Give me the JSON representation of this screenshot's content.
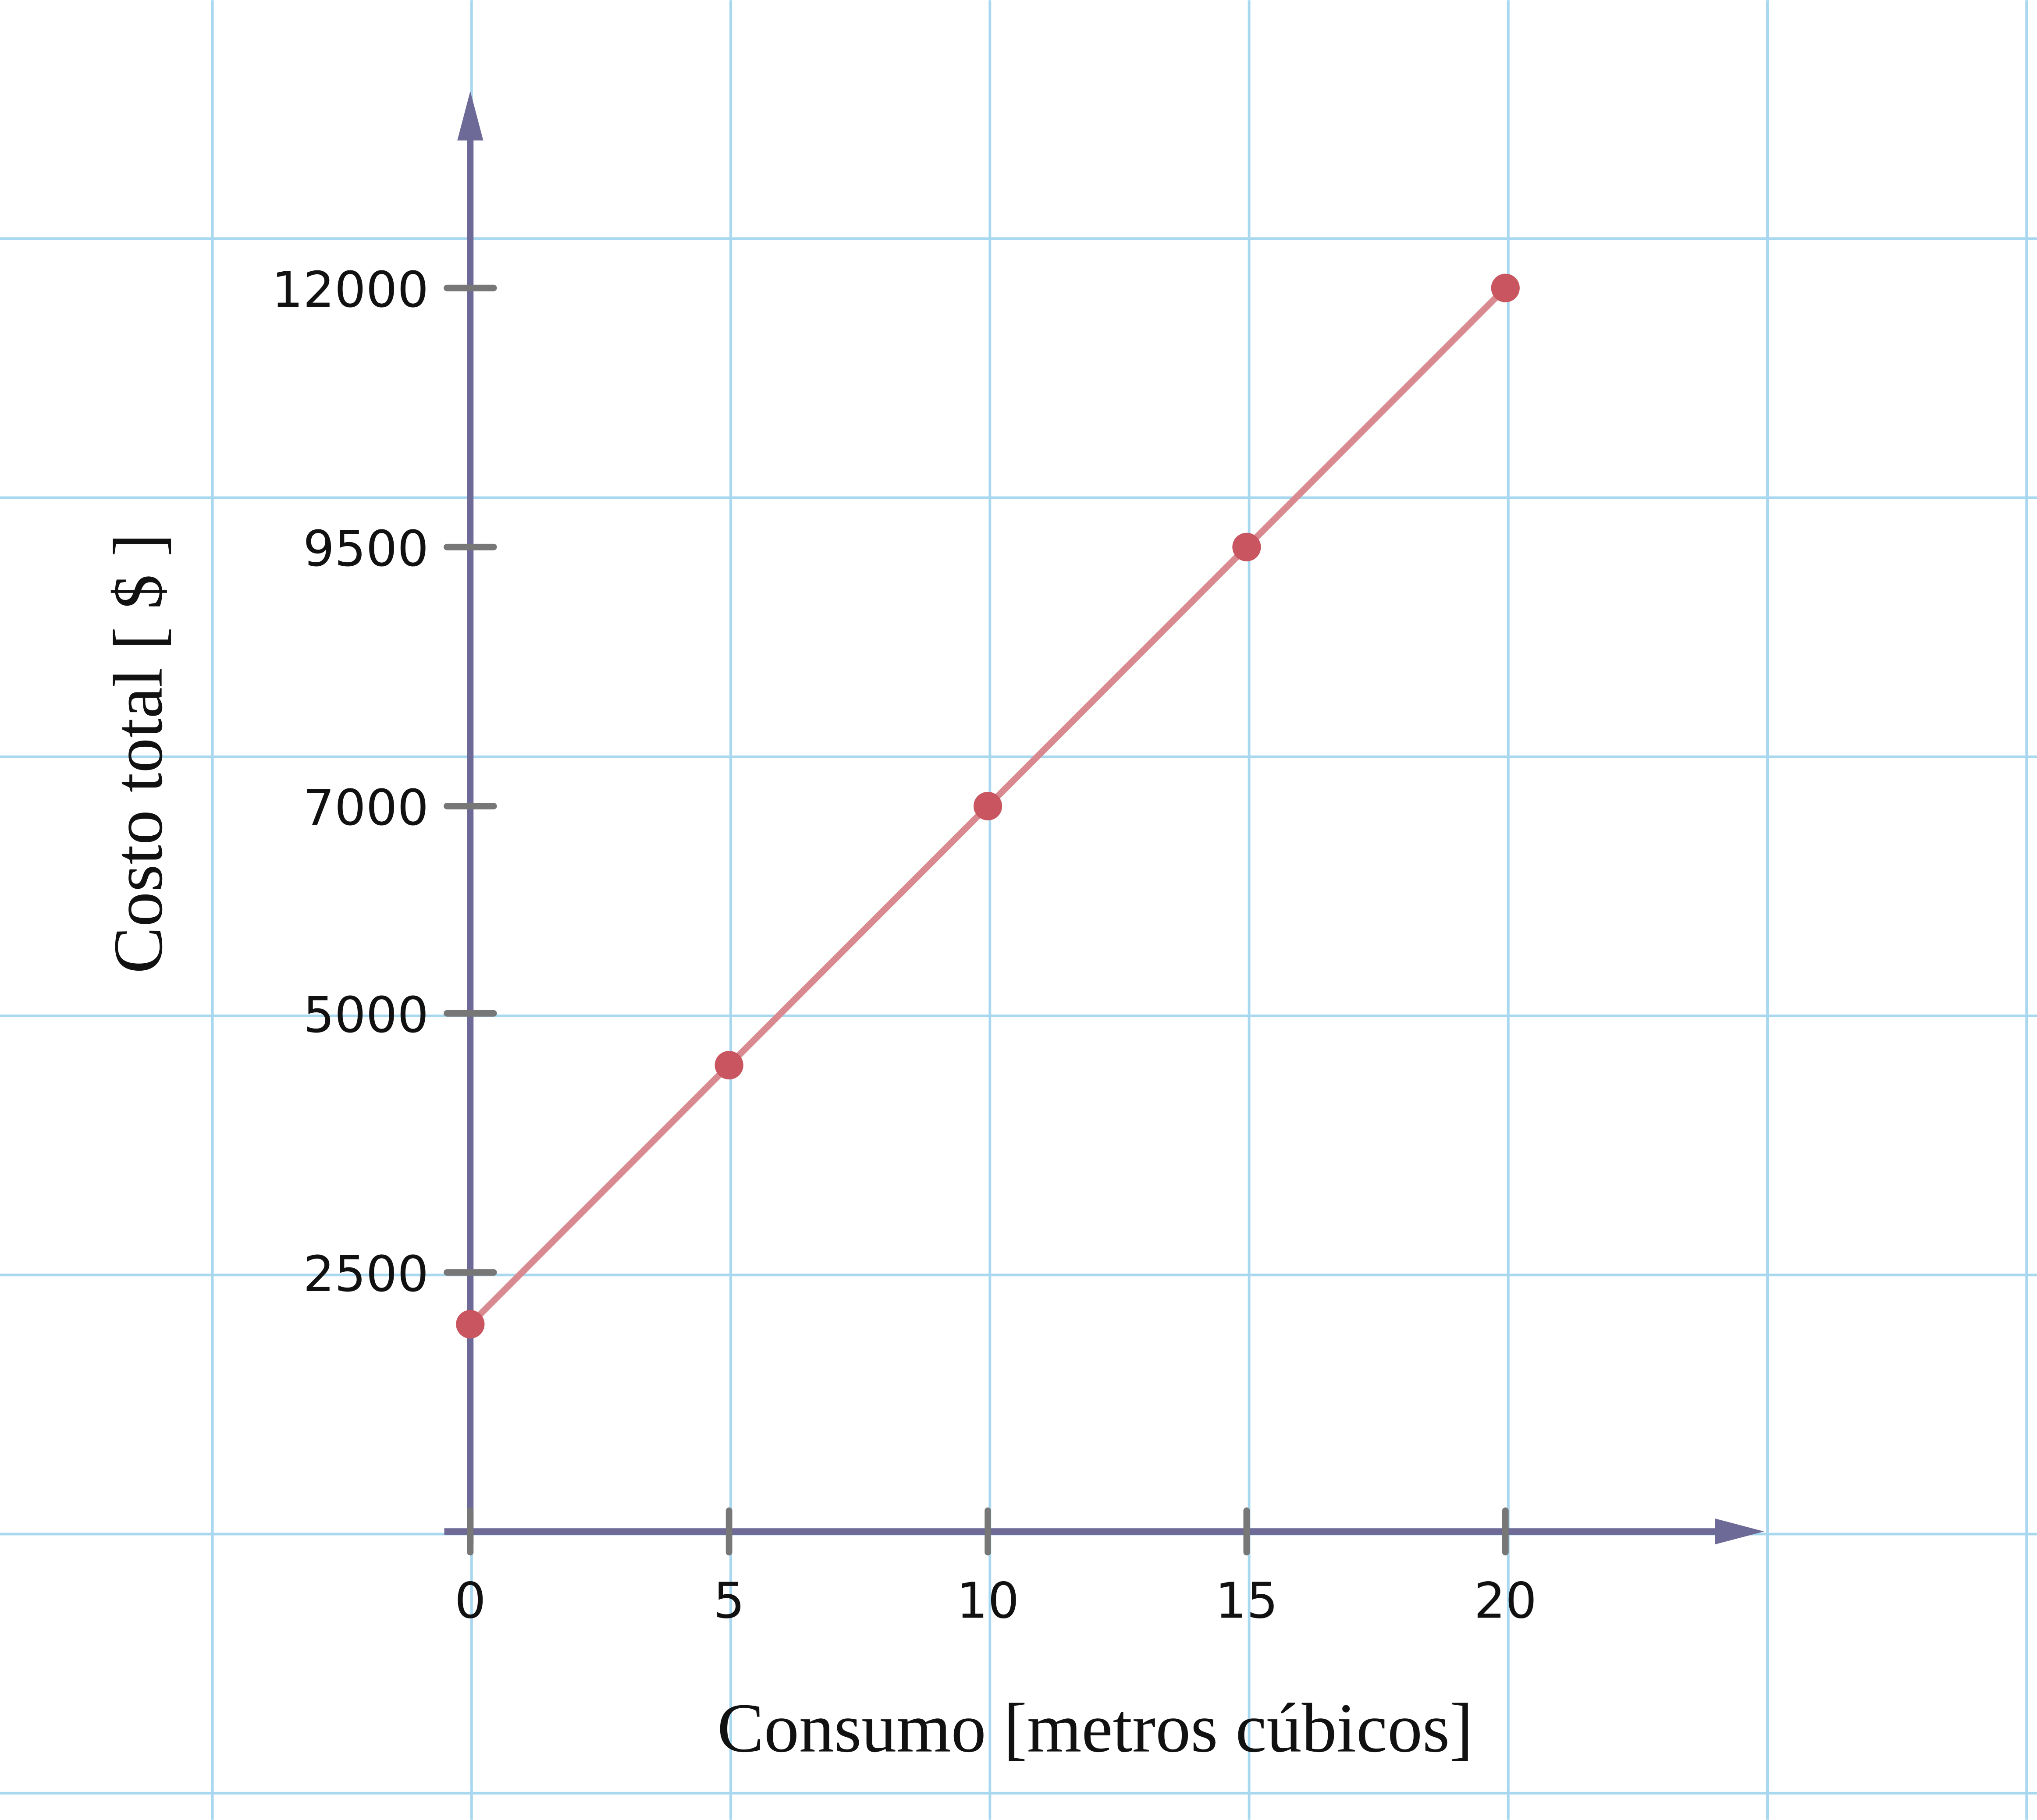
{
  "chart_data": {
    "type": "line",
    "x_label": "Consumo [metros cúbicos]",
    "y_label": "Costo total [ $ ]",
    "x": [
      0,
      5,
      10,
      15,
      20
    ],
    "series": [
      {
        "name": "Costo",
        "color": "#c8555f",
        "values": [
          2000,
          4500,
          7000,
          9500,
          12000
        ]
      }
    ],
    "xlim": [
      0,
      25
    ],
    "ylim": [
      0,
      13900
    ],
    "xticks": [
      0,
      5,
      10,
      15,
      20
    ],
    "yticks": [
      2500,
      5000,
      7000,
      9500,
      12000
    ],
    "grid": true
  }
}
